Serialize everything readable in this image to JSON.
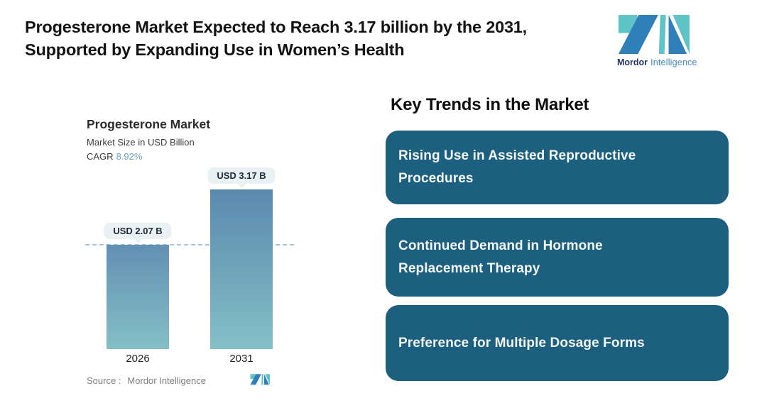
{
  "page": {
    "headline_line1": "Progesterone Market Expected to Reach 3.17 billion by the 2031,",
    "headline_line2": "Supported by Expanding Use in Women’s Health"
  },
  "brand": {
    "name_bold": "Mordor",
    "name_light": "Intelligence"
  },
  "chart": {
    "title": "Progesterone Market",
    "subtitle": "Market Size in USD Billion",
    "cagr_label": "CAGR",
    "cagr_value": "8.92%",
    "source_label": "Source :",
    "source_value": "Mordor Intelligence"
  },
  "chart_data": {
    "type": "bar",
    "title": "Progesterone Market",
    "ylabel": "Market Size in USD Billion",
    "cagr_pct": 8.92,
    "categories": [
      "2026",
      "2031"
    ],
    "values": [
      2.07,
      3.17
    ],
    "value_labels": [
      "USD 2.07 B",
      "USD 3.17 B"
    ],
    "reference_line": 2.07,
    "ylim": [
      0,
      3.5
    ],
    "grid": false,
    "legend": false
  },
  "trends": {
    "heading": "Key Trends in the Market",
    "items": [
      "Rising Use in Assisted Reproductive Procedures",
      "Continued Demand in Hormone Replacement Therapy",
      "Preference for Multiple Dosage Forms"
    ]
  },
  "colors": {
    "trend_card_bg": "#1d5f7e",
    "bar_gradient_top": "#5c8bb0",
    "bar_gradient_bottom": "#87c1c8",
    "reference_line_dash": "#a6c4da",
    "value_pill_bg": "#e9f1f4",
    "cagr_value_text": "#6aa2cd",
    "logo_teal": "#5fc4c6",
    "logo_blue": "#2f80b9",
    "brand_bold_text": "#26356b",
    "brand_light_text": "#4189c2"
  }
}
